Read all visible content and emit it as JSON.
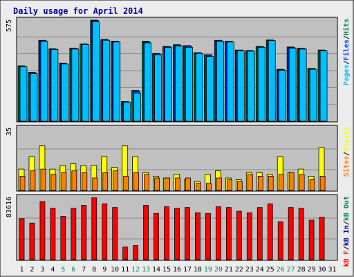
{
  "chart_data": {
    "type": "bar",
    "title": "Daily usage for April 2014",
    "colors": {
      "background": "#ececec",
      "panel": "#c0c0c0",
      "title_text": "#0000a0",
      "hits": "#00805c",
      "files": "#0040ff",
      "pages": "#00c0ff",
      "visits": "#ffff00",
      "sites": "#ff8000",
      "kbin": "#00805c",
      "kbout": "#0000a0",
      "kbf": "#ff0000",
      "weekend_label": "#00805c",
      "weekday_label": "#000000"
    },
    "categories": [
      "1",
      "2",
      "3",
      "4",
      "5",
      "6",
      "7",
      "8",
      "9",
      "10",
      "11",
      "12",
      "13",
      "14",
      "15",
      "16",
      "17",
      "18",
      "19",
      "20",
      "21",
      "22",
      "23",
      "24",
      "25",
      "26",
      "27",
      "28",
      "29",
      "30",
      "31"
    ],
    "weekend_days": [
      5,
      6,
      12,
      13,
      19,
      20,
      26,
      27
    ],
    "panels": [
      {
        "name": "hits-files-pages",
        "ymax_label": "575",
        "ylim": [
          0,
          575
        ],
        "legend": [
          "Pages",
          "/",
          "Files",
          "/",
          "Hits"
        ],
        "legend_colors": [
          "pages",
          "black",
          "files",
          "black",
          "hits"
        ],
        "series": [
          {
            "name": "Hits",
            "color": "hits",
            "values": [
              315,
              278,
              460,
              412,
              330,
              416,
              440,
              575,
              465,
              455,
              112,
              175,
              455,
              385,
              425,
              435,
              430,
              390,
              378,
              460,
              455,
              405,
              402,
              425,
              462,
              295,
              422,
              415,
              300,
              405
            ]
          },
          {
            "name": "Files",
            "color": "files",
            "values": [
              312,
              275,
              457,
              410,
              327,
              413,
              438,
              572,
              462,
              453,
              110,
              172,
              450,
              383,
              423,
              432,
              428,
              388,
              375,
              457,
              453,
              403,
              400,
              422,
              460,
              292,
              420,
              413,
              298,
              403
            ]
          },
          {
            "name": "Pages",
            "color": "pages",
            "values": [
              310,
              270,
              455,
              408,
              325,
              410,
              435,
              565,
              460,
              450,
              108,
              160,
              445,
              378,
              420,
              428,
              420,
              385,
              368,
              455,
              450,
              400,
              398,
              420,
              458,
              290,
              415,
              410,
              295,
              400
            ]
          }
        ]
      },
      {
        "name": "visits-sites",
        "ymax_label": "35",
        "ylim": [
          0,
          35
        ],
        "legend": [
          "Sites",
          "/",
          "Visits"
        ],
        "legend_colors": [
          "sites",
          "black",
          "visits"
        ],
        "series": [
          {
            "name": "Visits",
            "color": "visits",
            "values": [
              12,
              19,
              25,
              12,
              14,
              15,
              14,
              14,
              19,
              13,
              25,
              19,
              10,
              8,
              7,
              9,
              6,
              5,
              9,
              11,
              7,
              6,
              10,
              10,
              9,
              19,
              10,
              12,
              8,
              24
            ]
          },
          {
            "name": "Sites",
            "color": "sites",
            "values": [
              8,
              11,
              12,
              9,
              10,
              11,
              10,
              7,
              10,
              11,
              8,
              10,
              9,
              7,
              7,
              7,
              7,
              4,
              4,
              7,
              6,
              5,
              9,
              8,
              8,
              9,
              10,
              9,
              6,
              8
            ]
          }
        ]
      },
      {
        "name": "kbytes",
        "ymax_label": "83616",
        "ylim": [
          0,
          83616
        ],
        "legend": [
          "kB F",
          "/",
          "kB In",
          "/",
          "kB Out"
        ],
        "legend_colors": [
          "kbf",
          "black",
          "kbout",
          "black",
          "kbin"
        ],
        "series": [
          {
            "name": "kB F",
            "color": "kbf",
            "values": [
              55000,
              49000,
              78000,
              69000,
              58000,
              69000,
              73000,
              83000,
              75000,
              70000,
              17000,
              19000,
              73000,
              62000,
              71000,
              69000,
              70000,
              63000,
              62000,
              71000,
              70000,
              65000,
              63000,
              70000,
              75000,
              51000,
              70000,
              69000,
              53000,
              57000
            ]
          }
        ]
      }
    ]
  }
}
